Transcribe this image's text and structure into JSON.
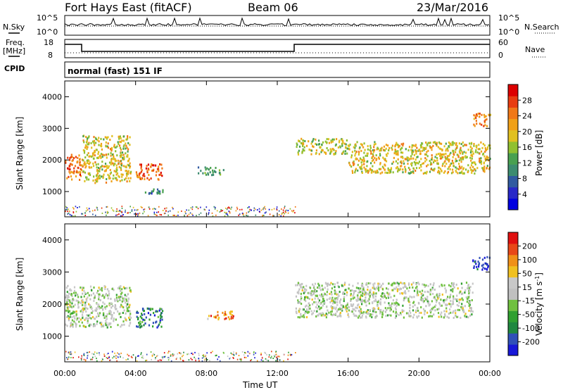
{
  "header": {
    "title": "Fort Hays East (fitACF)",
    "beam": "Beam 06",
    "date": "23/Mar/2016"
  },
  "top_panels": {
    "nsky_label": "N.Sky",
    "nsearch_label": "N.Search",
    "noise_ticks": [
      "10^5",
      "10^0"
    ],
    "freq_label": "Freq.",
    "freq_unit": "[MHz]",
    "freq_ticks": [
      "18",
      "8"
    ],
    "nave_label": "Nave",
    "nave_ticks": [
      "60",
      "0"
    ],
    "cpid_label": "CPID",
    "cpid_text": "normal (fast) 151 IF"
  },
  "colors": {
    "power_scale": [
      "#0000e0",
      "#2828c8",
      "#305aa0",
      "#3c8c70",
      "#48a050",
      "#90c030",
      "#e0c020",
      "#f0a018",
      "#f07818",
      "#e83c10",
      "#dc0000"
    ],
    "velocity_scale": [
      "#1818d8",
      "#3050b8",
      "#208840",
      "#30a030",
      "#70c040",
      "#c0c0c0",
      "#c8c8c8",
      "#f0c020",
      "#f09018",
      "#e84818",
      "#e01010"
    ]
  },
  "chart_data": [
    {
      "type": "heatmap",
      "name_shown": "Power [dB]",
      "ylabel": "Slant Range [km]",
      "yticks": [
        1000,
        2000,
        3000,
        4000
      ],
      "ylim": [
        200,
        4500
      ],
      "xlim": [
        0,
        24
      ],
      "colorbar": {
        "label": "Power [dB]",
        "ticks": [
          "28",
          "24",
          "20",
          "16",
          "12",
          "8",
          "4"
        ]
      },
      "echo_regions": [
        {
          "t_start": 0.0,
          "t_end": 1.0,
          "range_km": [
            1400,
            2200
          ],
          "level": 0.8
        },
        {
          "t_start": 1.0,
          "t_end": 3.7,
          "range_km": [
            1300,
            2800
          ],
          "level": 0.6
        },
        {
          "t_start": 4.0,
          "t_end": 5.5,
          "range_km": [
            1400,
            1900
          ],
          "level": 0.85
        },
        {
          "t_start": 4.5,
          "t_end": 5.5,
          "range_km": [
            950,
            1100
          ],
          "level": 0.3
        },
        {
          "t_start": 7.5,
          "t_end": 9.0,
          "range_km": [
            1550,
            1800
          ],
          "level": 0.35
        },
        {
          "t_start": 13.0,
          "t_end": 16.0,
          "range_km": [
            2200,
            2700
          ],
          "level": 0.55
        },
        {
          "t_start": 16.0,
          "t_end": 24.0,
          "range_km": [
            1600,
            2600
          ],
          "level": 0.6
        },
        {
          "t_start": 23.0,
          "t_end": 24.0,
          "range_km": [
            3100,
            3500
          ],
          "level": 0.8
        }
      ]
    },
    {
      "type": "heatmap",
      "name_shown": "Velocity [m s-1]",
      "ylabel": "Slant Range [km]",
      "xlabel": "Time UT",
      "yticks": [
        1000,
        2000,
        3000,
        4000
      ],
      "ylim": [
        200,
        4500
      ],
      "xlim": [
        0,
        24
      ],
      "xticks": [
        "00:00",
        "04:00",
        "08:00",
        "12:00",
        "16:00",
        "20:00",
        "00:00"
      ],
      "colorbar": {
        "label": "Velocity [m s",
        "label_sup": "-1",
        "label_end": "]",
        "ticks": [
          "200",
          "100",
          "50",
          "15",
          "-15",
          "-50",
          "-100",
          "-200"
        ]
      },
      "echo_regions": [
        {
          "t_start": 0.0,
          "t_end": 3.7,
          "range_km": [
            1300,
            2600
          ],
          "level": 0.5
        },
        {
          "t_start": 4.0,
          "t_end": 5.5,
          "range_km": [
            1300,
            1900
          ],
          "level": 0.2
        },
        {
          "t_start": 8.0,
          "t_end": 9.5,
          "range_km": [
            1550,
            1800
          ],
          "level": 0.8
        },
        {
          "t_start": 13.0,
          "t_end": 23.0,
          "range_km": [
            1600,
            2700
          ],
          "level": 0.5
        },
        {
          "t_start": 23.0,
          "t_end": 24.0,
          "range_km": [
            3100,
            3500
          ],
          "level": 0.0
        }
      ]
    }
  ]
}
